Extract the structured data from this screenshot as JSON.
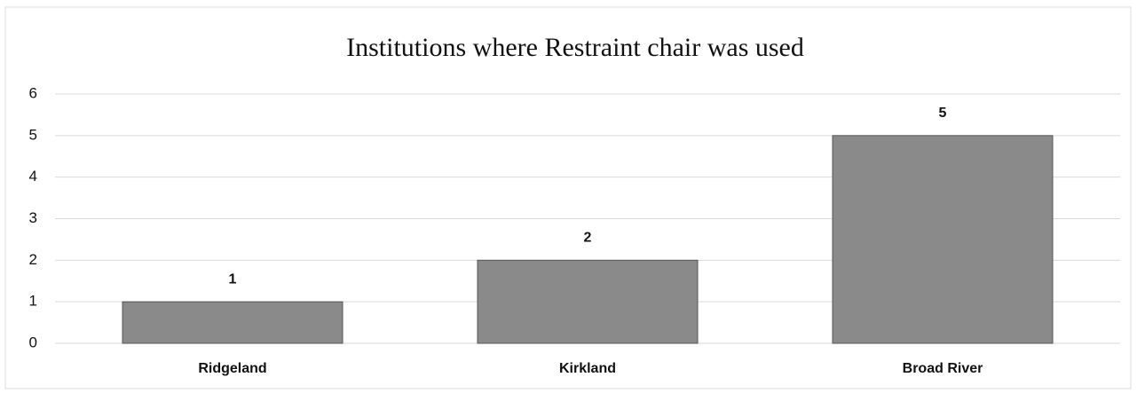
{
  "chart_data": {
    "type": "bar",
    "title": "Institutions where Restraint chair was used",
    "categories": [
      "Ridgeland",
      "Kirkland",
      "Broad River"
    ],
    "values": [
      1,
      2,
      5
    ],
    "color": "#8a8a8a",
    "ylim": [
      0,
      6
    ],
    "yticks": [
      0,
      1,
      2,
      3,
      4,
      5,
      6
    ],
    "grid": true
  }
}
